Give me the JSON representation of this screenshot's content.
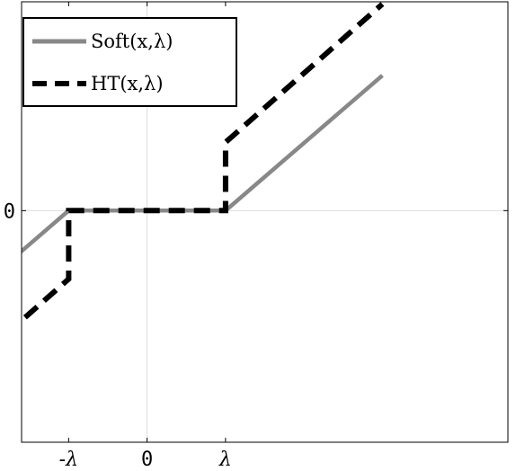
{
  "chart_data": {
    "type": "line",
    "title": "",
    "xlabel": "",
    "ylabel": "",
    "xlim": [
      -1.6,
      4.6
    ],
    "ylim": [
      -3.05,
      2.75
    ],
    "lambda": 1,
    "grid": true,
    "legend_position": "top-left",
    "x_ticks": [
      {
        "value": -1,
        "label": "-λ"
      },
      {
        "value": 0,
        "label": "0"
      },
      {
        "value": 1,
        "label": "λ"
      }
    ],
    "y_ticks": [
      {
        "value": 0,
        "label": "0"
      }
    ],
    "series": [
      {
        "name": "Soft(x,λ)",
        "style": "solid",
        "color": "#888888",
        "x": [
          -3,
          -1,
          1,
          3
        ],
        "y": [
          -1.78,
          0,
          0,
          1.78
        ]
      },
      {
        "name": "HT(x,λ)",
        "style": "dashed",
        "color": "#000000",
        "x": [
          -3,
          -1,
          -1,
          1,
          1,
          3
        ],
        "y": [
          -2.72,
          -0.9,
          0,
          0,
          0.9,
          2.72
        ]
      }
    ]
  }
}
